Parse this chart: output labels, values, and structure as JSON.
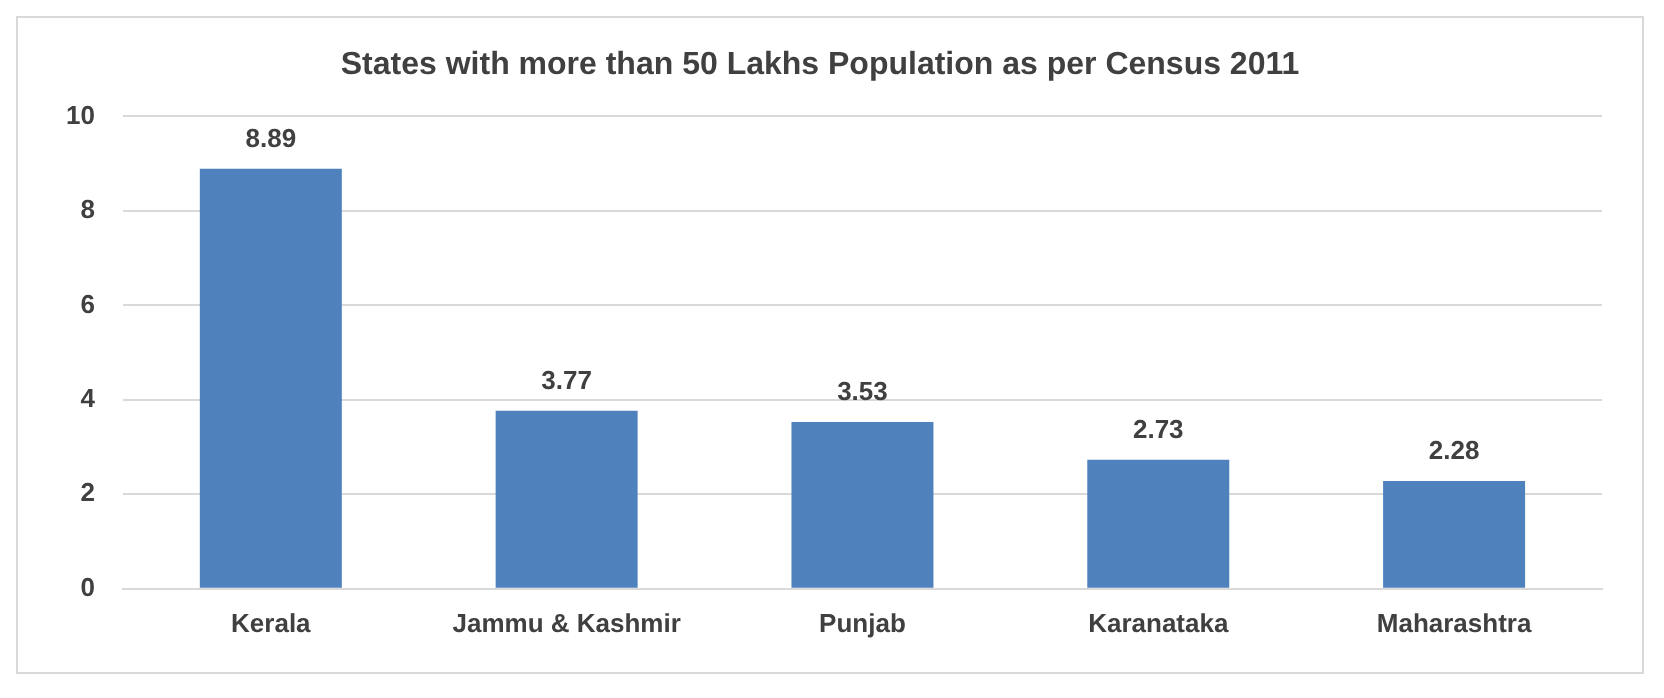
{
  "chart_data": {
    "type": "bar",
    "title": "States with more than 50 Lakhs Population as per Census 2011",
    "categories": [
      "Kerala",
      "Jammu & Kashmir",
      "Punjab",
      "Karanataka",
      "Maharashtra"
    ],
    "values": [
      8.89,
      3.77,
      3.53,
      2.73,
      2.28
    ],
    "color": "#4f81bd",
    "ylim": [
      0,
      10
    ],
    "yticks": [
      0,
      2,
      4,
      6,
      8,
      10
    ],
    "grid": "y",
    "data_labels": true,
    "legend": false
  }
}
